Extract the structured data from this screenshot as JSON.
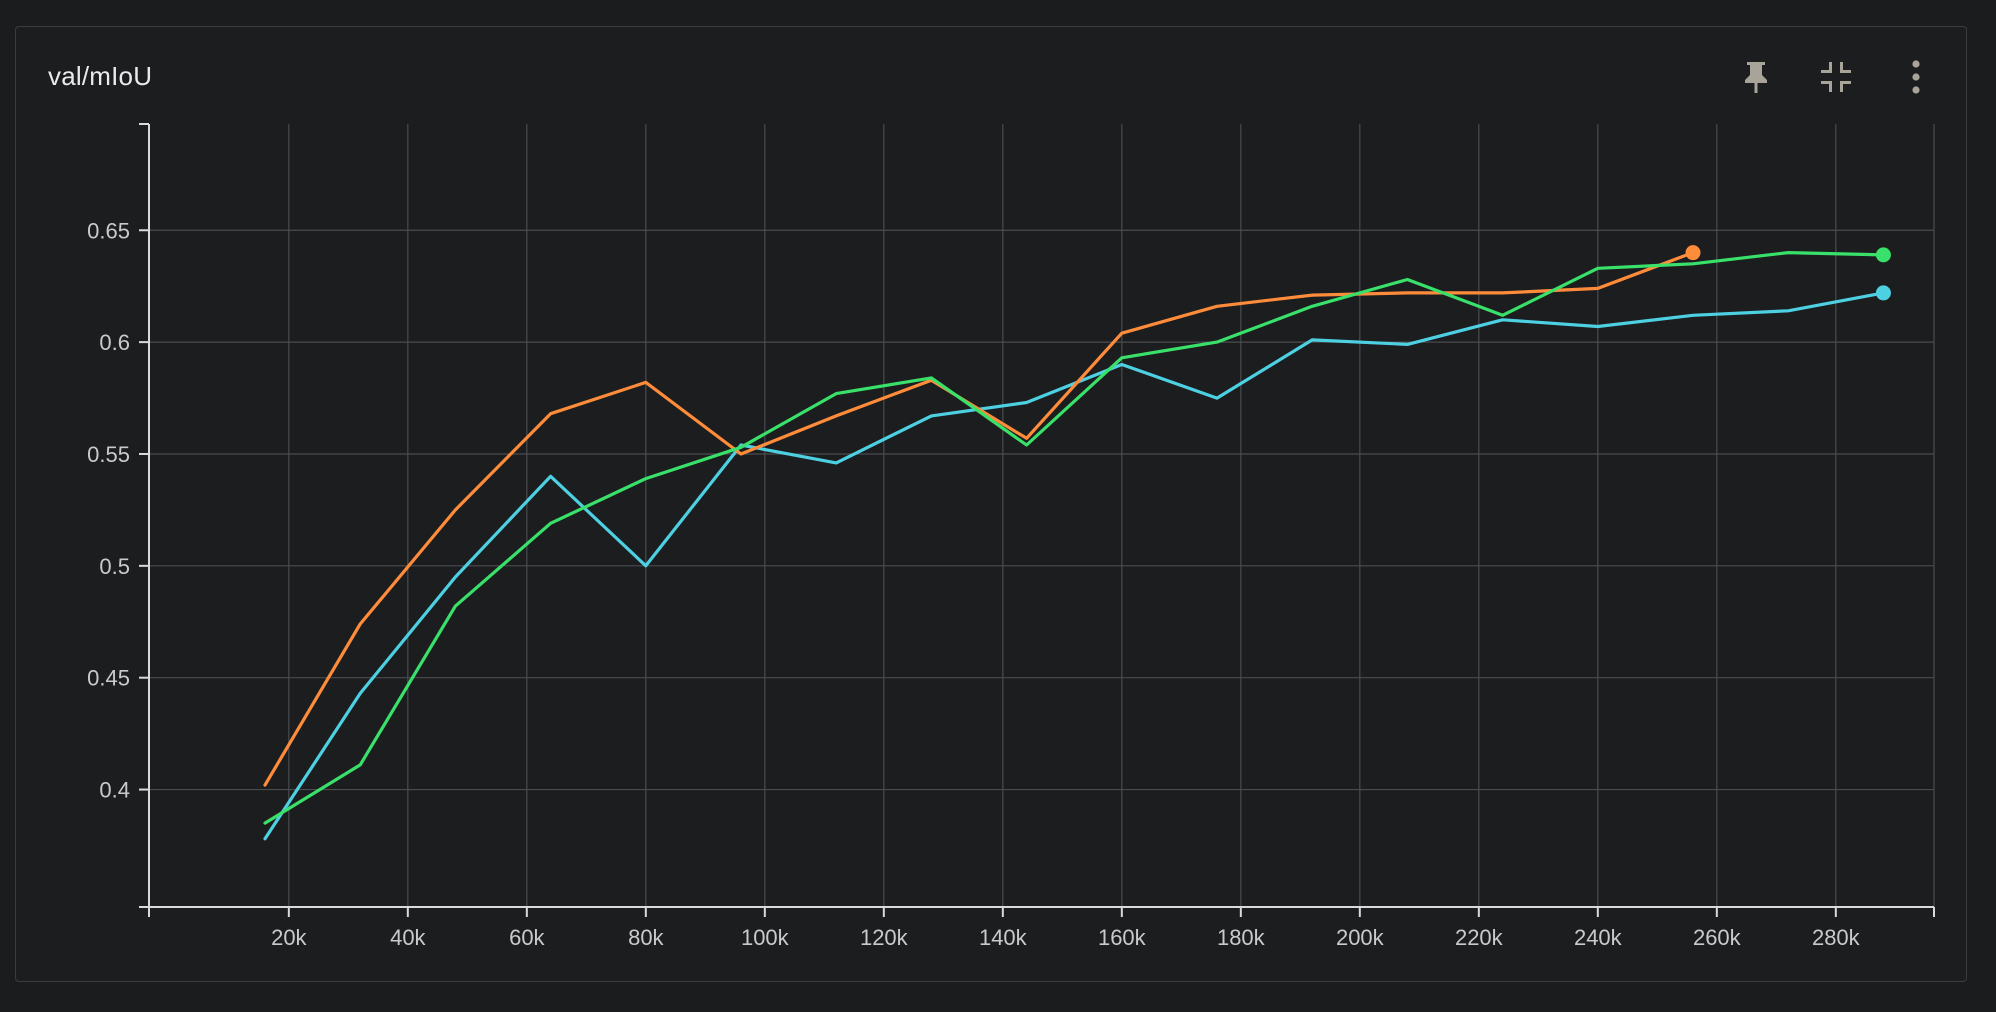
{
  "card": {
    "title": "val/mIoU"
  },
  "toolbar": {
    "pin_icon": "pin-icon",
    "collapse_icon": "collapse-icon",
    "more_icon": "more-vert-icon"
  },
  "chart_data": {
    "type": "line",
    "title": "val/mIoU",
    "xlim": [
      -3500,
      296500
    ],
    "ylim": [
      0.3475,
      0.6975
    ],
    "xticks": [
      20000,
      40000,
      60000,
      80000,
      100000,
      120000,
      140000,
      160000,
      180000,
      200000,
      220000,
      240000,
      260000,
      280000
    ],
    "xtick_labels": [
      "20k",
      "40k",
      "60k",
      "80k",
      "100k",
      "120k",
      "140k",
      "160k",
      "180k",
      "200k",
      "220k",
      "240k",
      "260k",
      "280k"
    ],
    "yticks": [
      0.4,
      0.45,
      0.5,
      0.55,
      0.6,
      0.65
    ],
    "ytick_labels": [
      "0.4",
      "0.45",
      "0.5",
      "0.55",
      "0.6",
      "0.65"
    ],
    "grid": true,
    "series": [
      {
        "color": "#4dd0e1",
        "x": [
          16000,
          32000,
          48000,
          64000,
          80000,
          96000,
          112000,
          128000,
          144000,
          160000,
          176000,
          192000,
          208000,
          224000,
          240000,
          256000,
          272000,
          288000
        ],
        "values": [
          0.378,
          0.443,
          0.495,
          0.54,
          0.5,
          0.554,
          0.546,
          0.567,
          0.573,
          0.59,
          0.575,
          0.601,
          0.599,
          0.61,
          0.607,
          0.612,
          0.614,
          0.622
        ]
      },
      {
        "color": "#ff8c3a",
        "x": [
          16000,
          32000,
          48000,
          64000,
          80000,
          96000,
          112000,
          128000,
          144000,
          160000,
          176000,
          192000,
          208000,
          224000,
          240000,
          256000
        ],
        "values": [
          0.402,
          0.474,
          0.525,
          0.568,
          0.582,
          0.55,
          0.567,
          0.583,
          0.557,
          0.604,
          0.616,
          0.621,
          0.622,
          0.622,
          0.624,
          0.64
        ]
      },
      {
        "color": "#39e069",
        "x": [
          16000,
          32000,
          48000,
          64000,
          80000,
          96000,
          112000,
          128000,
          144000,
          160000,
          176000,
          192000,
          208000,
          224000,
          240000,
          256000,
          272000,
          288000
        ],
        "values": [
          0.385,
          0.411,
          0.482,
          0.519,
          0.539,
          0.553,
          0.577,
          0.584,
          0.554,
          0.593,
          0.6,
          0.616,
          0.628,
          0.612,
          0.633,
          0.635,
          0.64,
          0.639
        ]
      }
    ]
  }
}
